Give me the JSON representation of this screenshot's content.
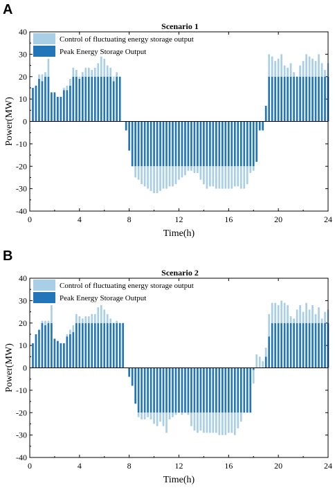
{
  "colors": {
    "peak": "#2275b8",
    "fluct": "#a9cfe6",
    "axis": "#000000"
  },
  "chart_data": [
    {
      "panel_label": "A",
      "type": "bar",
      "stacked": true,
      "title": "Scenario 1",
      "xlabel": "Time(h)",
      "ylabel": "Power(MW)",
      "xlim": [
        0,
        24
      ],
      "ylim": [
        -40,
        40
      ],
      "xticks": [
        "0",
        "4",
        "8",
        "12",
        "16",
        "20",
        "24"
      ],
      "yticks": [
        "-40",
        "-30",
        "-20",
        "-10",
        "0",
        "10",
        "20",
        "30",
        "40"
      ],
      "legend_position": "top-left",
      "bar_step_h": 0.25,
      "x_start": 0.25,
      "series": [
        {
          "name": "Peak Energy Storage Output",
          "color_key": "peak",
          "values": [
            15,
            16,
            19,
            18,
            20,
            20,
            13,
            13,
            11,
            11,
            14,
            14,
            16,
            20,
            20,
            19,
            20,
            20,
            20,
            20,
            20,
            20,
            20,
            20,
            20,
            20,
            18,
            20,
            20,
            0,
            -4,
            -13,
            -20,
            -20,
            -20,
            -20,
            -20,
            -20,
            -20,
            -20,
            -20,
            -20,
            -20,
            -20,
            -20,
            -20,
            -20,
            -20,
            -20,
            -20,
            -20,
            -20,
            -20,
            -20,
            -20,
            -20,
            -20,
            -20,
            -20,
            -20,
            -20,
            -20,
            -20,
            -20,
            -20,
            -20,
            -20,
            -20,
            -20,
            -20,
            -20,
            -20,
            -18,
            -4,
            -4,
            7,
            20,
            20,
            20,
            20,
            20,
            20,
            20,
            20,
            20,
            20,
            20,
            20,
            20,
            20,
            20,
            20,
            20,
            20,
            20,
            20
          ]
        },
        {
          "name": "Control of fluctuating energy storage output",
          "color_key": "fluct",
          "values": [
            0,
            0,
            2,
            3,
            2,
            8,
            0,
            0,
            0,
            0,
            1,
            2,
            3,
            4,
            3,
            1,
            2,
            4,
            4,
            3,
            4,
            6,
            9,
            8,
            5,
            4,
            2,
            2,
            0,
            0,
            0,
            0,
            0,
            5,
            6,
            8,
            9,
            10,
            11,
            12,
            12,
            11,
            10,
            10,
            9,
            9,
            8,
            6,
            5,
            4,
            2,
            2,
            3,
            3,
            6,
            8,
            10,
            9,
            9,
            10,
            10,
            10,
            10,
            10,
            10,
            9,
            9,
            10,
            10,
            8,
            3,
            2,
            0,
            0,
            0,
            0,
            10,
            9,
            7,
            8,
            10,
            5,
            4,
            6,
            2,
            0,
            5,
            7,
            10,
            9,
            8,
            7,
            10,
            6,
            3,
            6
          ]
        }
      ]
    },
    {
      "panel_label": "B",
      "type": "bar",
      "stacked": true,
      "title": "Scenario 2",
      "xlabel": "Time(h)",
      "ylabel": "Power(MW)",
      "xlim": [
        0,
        24
      ],
      "ylim": [
        -40,
        40
      ],
      "xticks": [
        "0",
        "4",
        "8",
        "12",
        "16",
        "20",
        "24"
      ],
      "yticks": [
        "-40",
        "-30",
        "-20",
        "-10",
        "0",
        "10",
        "20",
        "30",
        "40"
      ],
      "legend_position": "top-left",
      "bar_step_h": 0.25,
      "x_start": 0.25,
      "series": [
        {
          "name": "Peak Energy Storage Output",
          "color_key": "peak",
          "values": [
            11,
            15,
            17,
            20,
            19,
            20,
            20,
            13,
            12,
            11,
            11,
            14,
            15,
            16,
            20,
            20,
            20,
            20,
            20,
            20,
            20,
            20,
            20,
            20,
            20,
            20,
            20,
            20,
            20,
            20,
            0,
            -4,
            -8,
            -16,
            -20,
            -20,
            -20,
            -20,
            -20,
            -20,
            -20,
            -20,
            -20,
            -20,
            -20,
            -20,
            -20,
            -20,
            -20,
            -20,
            -20,
            -20,
            -20,
            -20,
            -20,
            -20,
            -20,
            -20,
            -20,
            -20,
            -20,
            -20,
            -20,
            -20,
            -20,
            -20,
            -20,
            -20,
            -20,
            -20,
            -20,
            -1,
            0,
            0,
            0,
            5,
            14,
            20,
            20,
            20,
            20,
            20,
            20,
            20,
            20,
            20,
            20,
            20,
            20,
            20,
            20,
            20,
            20,
            20,
            20,
            20
          ]
        },
        {
          "name": "Control of fluctuating energy storage output",
          "color_key": "fluct",
          "values": [
            0,
            0,
            0,
            1,
            2,
            1,
            8,
            0,
            0,
            0,
            0,
            1,
            2,
            3,
            4,
            3,
            2,
            3,
            3,
            4,
            4,
            7,
            8,
            6,
            4,
            2,
            0,
            1,
            0,
            0,
            0,
            0,
            0,
            0,
            2,
            3,
            3,
            2,
            3,
            5,
            6,
            4,
            6,
            9,
            3,
            2,
            1,
            0,
            1,
            0,
            1,
            6,
            8,
            9,
            8,
            9,
            9,
            9,
            9,
            9,
            10,
            10,
            10,
            9,
            9,
            10,
            7,
            4,
            0,
            0,
            0,
            6,
            6,
            5,
            3,
            4,
            10,
            9,
            9,
            8,
            10,
            9,
            8,
            3,
            2,
            6,
            8,
            5,
            9,
            6,
            8,
            4,
            7,
            2,
            5,
            6
          ]
        }
      ]
    }
  ]
}
